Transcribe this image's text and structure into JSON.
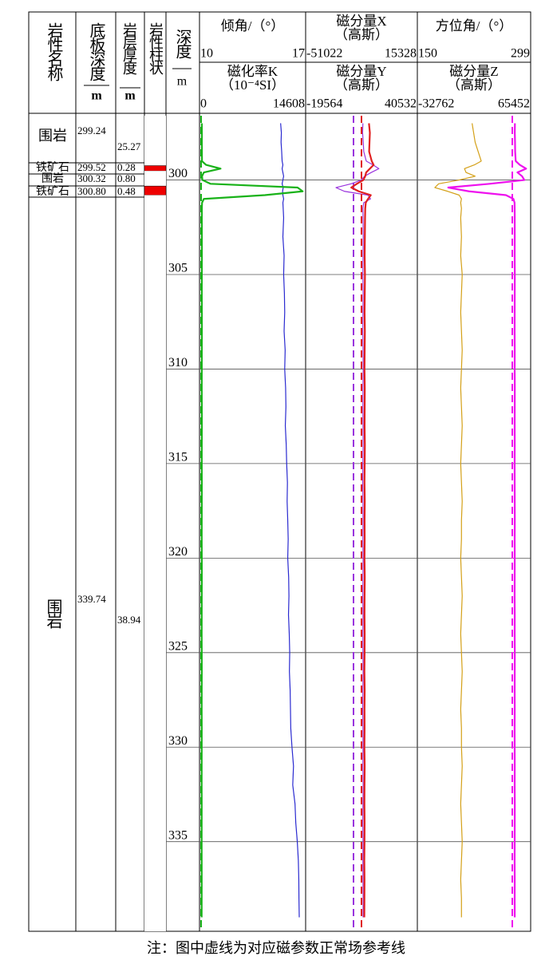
{
  "header": {
    "columns": [
      {
        "title": "岩性名称"
      },
      {
        "title": "底板深度",
        "unit": "m"
      },
      {
        "title": "岩层厚度",
        "unit": "m"
      },
      {
        "title": "岩性柱状"
      },
      {
        "title": "深度",
        "unit": "m"
      }
    ]
  },
  "layers": [
    {
      "name": "围岩",
      "bottom": "299.24",
      "thickness": "25.27",
      "color": "#ffffff"
    },
    {
      "name": "铁矿石",
      "bottom": "299.52",
      "thickness": "0.28",
      "color": "#ee0000"
    },
    {
      "name": "围岩",
      "bottom": "300.32",
      "thickness": "0.80",
      "color": "#ffffff"
    },
    {
      "name": "铁矿石",
      "bottom": "300.80",
      "thickness": "0.48",
      "color": "#ee0000"
    },
    {
      "name": "围岩",
      "bottom": "339.74",
      "thickness": "38.94",
      "color": "#ffffff"
    }
  ],
  "chart_data": {
    "type": "well-log",
    "ylim": [
      296.6,
      339.74
    ],
    "yticks": [
      300,
      305,
      310,
      315,
      320,
      325,
      330,
      335
    ],
    "grid": true,
    "depth": [
      297,
      297.5,
      298,
      298.5,
      299,
      299.2,
      299.4,
      299.6,
      299.8,
      300,
      300.2,
      300.4,
      300.6,
      300.8,
      301,
      301.2,
      301.5,
      302,
      303,
      304,
      305,
      306,
      307,
      308,
      309,
      310,
      311,
      312,
      313,
      314,
      315,
      316,
      317,
      318,
      319,
      320,
      321,
      322,
      323,
      324,
      325,
      326,
      327,
      328,
      329,
      330,
      331,
      332,
      333,
      334,
      335,
      336,
      337,
      338,
      339
    ],
    "tracks": [
      {
        "curves": [
          {
            "name": "倾角/（°）",
            "color": "#2a2ad0",
            "xlim": [
              10,
              17
            ],
            "values": [
              15.35,
              15.4,
              15.38,
              15.42,
              15.45,
              15.5,
              15.45,
              15.5,
              15.55,
              15.5,
              15.45,
              15.52,
              15.48,
              15.5,
              15.55,
              15.5,
              15.52,
              15.55,
              15.5,
              15.58,
              15.55,
              15.6,
              15.62,
              15.58,
              15.65,
              15.62,
              15.68,
              15.7,
              15.66,
              15.72,
              15.75,
              15.8,
              15.78,
              15.82,
              15.85,
              15.82,
              15.88,
              15.9,
              15.87,
              15.92,
              15.95,
              15.93,
              15.98,
              16.0,
              16.02,
              16.1,
              16.2,
              16.15,
              16.3,
              16.35,
              16.45,
              16.52,
              16.55,
              16.56,
              16.58
            ]
          },
          {
            "name": "磁化率K",
            "unit": "（10⁻⁴SI）",
            "color": "#19b219",
            "xlim": [
              0,
              14608
            ],
            "reference": 220,
            "values": [
              320,
              330,
              325,
              335,
              340,
              900,
              2900,
              600,
              350,
              400,
              1500,
              13500,
              14200,
              9000,
              600,
              350,
              330,
              320,
              325,
              330,
              320,
              315,
              325,
              330,
              320,
              315,
              310,
              320,
              325,
              315,
              310,
              320,
              315,
              310,
              305,
              315,
              320,
              310,
              305,
              300,
              310,
              315,
              305,
              300,
              310,
              305,
              300,
              295,
              305,
              300,
              295,
              300,
              305,
              300,
              295
            ]
          }
        ]
      },
      {
        "curves": [
          {
            "name": "磁分量X",
            "unit": "（高斯）",
            "color": "#9933dd",
            "xlim": [
              -51022,
              15328
            ],
            "reference": -22590,
            "values": [
              -17000,
              -17200,
              -16800,
              -16500,
              -15000,
              -11000,
              -7500,
              -12000,
              -16000,
              -18000,
              -24000,
              -33000,
              -28000,
              -14000,
              -12500,
              -16500,
              -17000,
              -16900,
              -16800,
              -16900,
              -17000,
              -16850,
              -16950,
              -17050,
              -16900,
              -16800,
              -16950,
              -17000,
              -16900,
              -16850,
              -17000,
              -17100,
              -16950,
              -16900,
              -17000,
              -16850,
              -16950,
              -17050,
              -16900,
              -17000,
              -16950,
              -16850,
              -17000,
              -17100,
              -16950,
              -16900,
              -17000,
              -16850,
              -16950,
              -17050,
              -16900,
              -17000,
              -16950,
              -16850,
              -16900
            ]
          },
          {
            "name": "磁分量Y",
            "unit": "（高斯）",
            "color": "#e02020",
            "xlim": [
              -19564,
              40532
            ],
            "reference": 10480,
            "values": [
              14500,
              15000,
              14800,
              14600,
              16000,
              17000,
              15000,
              13000,
              12500,
              11500,
              8000,
              5000,
              9000,
              15500,
              14000,
              12800,
              12500,
              12400,
              12300,
              12200,
              12350,
              12250,
              12150,
              12300,
              12200,
              12100,
              12250,
              12200,
              12150,
              12300,
              12200,
              12100,
              12250,
              12150,
              12200,
              12100,
              12250,
              12150,
              12100,
              12200,
              12150,
              12050,
              12200,
              12100,
              12150,
              12050,
              12200,
              12100,
              12050,
              12150,
              12100,
              12000,
              12100,
              12050,
              12000
            ]
          }
        ]
      },
      {
        "curves": [
          {
            "name": "方位角/（°）",
            "color": "#d4a017",
            "xlim": [
              150,
              299
            ],
            "values": [
              222,
              224,
              226,
              230,
              234,
              225,
              212,
              214,
              226,
              205,
              178,
              173,
              190,
              205,
              208,
              207,
              208,
              207,
              208,
              207,
              209,
              208,
              207,
              208,
              209,
              208,
              207,
              208,
              209,
              208,
              207,
              208,
              209,
              208,
              208,
              207,
              208,
              209,
              208,
              207,
              208,
              209,
              208,
              207,
              208,
              208,
              209,
              208,
              207,
              208,
              209,
              208,
              207,
              208,
              208
            ]
          },
          {
            "name": "磁分量Z",
            "unit": "（高斯）",
            "color": "#ee11ee",
            "xlim": [
              -32762,
              65452
            ],
            "reference": 49540,
            "values": [
              51800,
              51700,
              51900,
              52000,
              52500,
              56000,
              61500,
              54000,
              58000,
              60000,
              30000,
              -6000,
              12000,
              44000,
              50500,
              51500,
              51600,
              51650,
              51650,
              51600,
              51700,
              51650,
              51600,
              51550,
              51650,
              51600,
              51700,
              51650,
              51600,
              51650,
              51550,
              51600,
              51650,
              51700,
              51600,
              51650,
              51600,
              51550,
              51650,
              51600,
              51700,
              51650,
              51600,
              51650,
              51550,
              51600,
              51650,
              51600,
              51700,
              51650,
              51600,
              51550,
              51650,
              51600,
              51650
            ]
          }
        ]
      }
    ]
  },
  "note": "注：图中虚线为对应磁参数正常场参考线"
}
